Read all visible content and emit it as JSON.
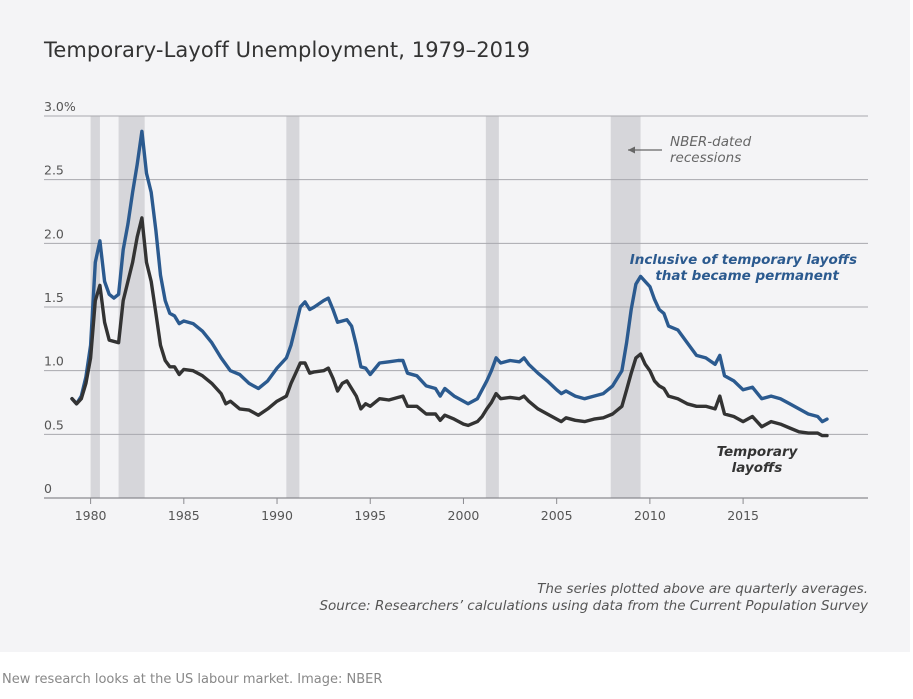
{
  "title": "Temporary-Layoff Unemployment, 1979–2019",
  "notes": [
    "The series plotted above are quarterly averages.",
    "Source: Researchers’ calculations using data from the Current Population Survey"
  ],
  "caption": "New research looks at the US labour market. Image: NBER",
  "chart_data": {
    "type": "line",
    "title": "Temporary-Layoff Unemployment, 1979–2019",
    "xlabel": "",
    "ylabel": "",
    "xlim": [
      1977.5,
      2021.7
    ],
    "ylim": [
      0,
      3.0
    ],
    "x_ticks": [
      1980,
      1985,
      1990,
      1995,
      2000,
      2005,
      2010,
      2015
    ],
    "x_tick_labels": [
      "1980",
      "1985",
      "1990",
      "1995",
      "2000",
      "2005",
      "2010",
      "2015"
    ],
    "y_ticks": [
      0,
      0.5,
      1.0,
      1.5,
      2.0,
      2.5,
      3.0
    ],
    "y_tick_labels": [
      "0",
      "0.5",
      "1.0",
      "1.5",
      "2.0",
      "2.5",
      "3.0%"
    ],
    "grid": true,
    "recessions": [
      {
        "start": 1980.0,
        "end": 1980.5
      },
      {
        "start": 1981.5,
        "end": 1982.9
      },
      {
        "start": 1990.5,
        "end": 1991.2
      },
      {
        "start": 2001.2,
        "end": 2001.9
      },
      {
        "start": 2007.9,
        "end": 2009.5
      }
    ],
    "recession_label": [
      "NBER-dated",
      "recessions"
    ],
    "series": [
      {
        "name": "Inclusive of temporary layoffs that became permanent",
        "label_lines": [
          "Inclusive of temporary layoffs",
          "that became permanent"
        ],
        "color": "#2b5a8f",
        "points": [
          [
            1979.0,
            0.78
          ],
          [
            1979.25,
            0.74
          ],
          [
            1979.5,
            0.8
          ],
          [
            1979.75,
            0.95
          ],
          [
            1980.0,
            1.2
          ],
          [
            1980.25,
            1.85
          ],
          [
            1980.5,
            2.02
          ],
          [
            1980.75,
            1.7
          ],
          [
            1981.0,
            1.6
          ],
          [
            1981.25,
            1.57
          ],
          [
            1981.5,
            1.6
          ],
          [
            1981.75,
            1.95
          ],
          [
            1982.0,
            2.15
          ],
          [
            1982.25,
            2.4
          ],
          [
            1982.5,
            2.62
          ],
          [
            1982.75,
            2.88
          ],
          [
            1983.0,
            2.55
          ],
          [
            1983.25,
            2.4
          ],
          [
            1983.5,
            2.1
          ],
          [
            1983.75,
            1.75
          ],
          [
            1984.0,
            1.55
          ],
          [
            1984.25,
            1.45
          ],
          [
            1984.5,
            1.43
          ],
          [
            1984.75,
            1.37
          ],
          [
            1985.0,
            1.39
          ],
          [
            1985.5,
            1.37
          ],
          [
            1986.0,
            1.31
          ],
          [
            1986.5,
            1.22
          ],
          [
            1987.0,
            1.1
          ],
          [
            1987.5,
            1.0
          ],
          [
            1988.0,
            0.97
          ],
          [
            1988.5,
            0.9
          ],
          [
            1989.0,
            0.86
          ],
          [
            1989.5,
            0.92
          ],
          [
            1990.0,
            1.02
          ],
          [
            1990.5,
            1.1
          ],
          [
            1990.75,
            1.2
          ],
          [
            1991.0,
            1.35
          ],
          [
            1991.25,
            1.5
          ],
          [
            1991.5,
            1.54
          ],
          [
            1991.75,
            1.48
          ],
          [
            1992.0,
            1.5
          ],
          [
            1992.5,
            1.55
          ],
          [
            1992.75,
            1.57
          ],
          [
            1993.0,
            1.48
          ],
          [
            1993.25,
            1.38
          ],
          [
            1993.75,
            1.4
          ],
          [
            1994.0,
            1.35
          ],
          [
            1994.25,
            1.2
          ],
          [
            1994.5,
            1.03
          ],
          [
            1994.75,
            1.02
          ],
          [
            1995.0,
            0.97
          ],
          [
            1995.5,
            1.06
          ],
          [
            1996.0,
            1.07
          ],
          [
            1996.5,
            1.08
          ],
          [
            1996.75,
            1.08
          ],
          [
            1997.0,
            0.98
          ],
          [
            1997.5,
            0.96
          ],
          [
            1998.0,
            0.88
          ],
          [
            1998.5,
            0.86
          ],
          [
            1998.75,
            0.8
          ],
          [
            1999.0,
            0.86
          ],
          [
            1999.5,
            0.8
          ],
          [
            2000.0,
            0.76
          ],
          [
            2000.25,
            0.74
          ],
          [
            2000.75,
            0.78
          ],
          [
            2001.0,
            0.85
          ],
          [
            2001.25,
            0.92
          ],
          [
            2001.5,
            1.0
          ],
          [
            2001.75,
            1.1
          ],
          [
            2002.0,
            1.06
          ],
          [
            2002.5,
            1.08
          ],
          [
            2003.0,
            1.07
          ],
          [
            2003.25,
            1.1
          ],
          [
            2003.5,
            1.05
          ],
          [
            2004.0,
            0.98
          ],
          [
            2004.5,
            0.92
          ],
          [
            2005.0,
            0.85
          ],
          [
            2005.25,
            0.82
          ],
          [
            2005.5,
            0.84
          ],
          [
            2006.0,
            0.8
          ],
          [
            2006.5,
            0.78
          ],
          [
            2007.0,
            0.8
          ],
          [
            2007.5,
            0.82
          ],
          [
            2008.0,
            0.88
          ],
          [
            2008.5,
            1.0
          ],
          [
            2008.75,
            1.22
          ],
          [
            2009.0,
            1.48
          ],
          [
            2009.25,
            1.68
          ],
          [
            2009.5,
            1.74
          ],
          [
            2009.75,
            1.7
          ],
          [
            2010.0,
            1.66
          ],
          [
            2010.25,
            1.56
          ],
          [
            2010.5,
            1.48
          ],
          [
            2010.75,
            1.45
          ],
          [
            2011.0,
            1.35
          ],
          [
            2011.5,
            1.32
          ],
          [
            2012.0,
            1.22
          ],
          [
            2012.5,
            1.12
          ],
          [
            2013.0,
            1.1
          ],
          [
            2013.5,
            1.05
          ],
          [
            2013.75,
            1.12
          ],
          [
            2014.0,
            0.96
          ],
          [
            2014.5,
            0.92
          ],
          [
            2015.0,
            0.85
          ],
          [
            2015.5,
            0.87
          ],
          [
            2016.0,
            0.78
          ],
          [
            2016.5,
            0.8
          ],
          [
            2017.0,
            0.78
          ],
          [
            2017.5,
            0.74
          ],
          [
            2018.0,
            0.7
          ],
          [
            2018.5,
            0.66
          ],
          [
            2019.0,
            0.64
          ],
          [
            2019.25,
            0.6
          ],
          [
            2019.5,
            0.62
          ]
        ]
      },
      {
        "name": "Temporary layoffs",
        "label_lines": [
          "Temporary",
          "layoffs"
        ],
        "color": "#333333",
        "points": [
          [
            1979.0,
            0.78
          ],
          [
            1979.25,
            0.74
          ],
          [
            1979.5,
            0.78
          ],
          [
            1979.75,
            0.9
          ],
          [
            1980.0,
            1.1
          ],
          [
            1980.25,
            1.55
          ],
          [
            1980.5,
            1.67
          ],
          [
            1980.75,
            1.38
          ],
          [
            1981.0,
            1.24
          ],
          [
            1981.5,
            1.22
          ],
          [
            1981.75,
            1.55
          ],
          [
            1982.0,
            1.7
          ],
          [
            1982.25,
            1.85
          ],
          [
            1982.5,
            2.05
          ],
          [
            1982.75,
            2.2
          ],
          [
            1983.0,
            1.85
          ],
          [
            1983.25,
            1.7
          ],
          [
            1983.5,
            1.45
          ],
          [
            1983.75,
            1.2
          ],
          [
            1984.0,
            1.08
          ],
          [
            1984.25,
            1.03
          ],
          [
            1984.5,
            1.03
          ],
          [
            1984.75,
            0.97
          ],
          [
            1985.0,
            1.01
          ],
          [
            1985.5,
            1.0
          ],
          [
            1986.0,
            0.96
          ],
          [
            1986.5,
            0.9
          ],
          [
            1987.0,
            0.82
          ],
          [
            1987.25,
            0.74
          ],
          [
            1987.5,
            0.76
          ],
          [
            1988.0,
            0.7
          ],
          [
            1988.5,
            0.69
          ],
          [
            1989.0,
            0.65
          ],
          [
            1989.5,
            0.7
          ],
          [
            1990.0,
            0.76
          ],
          [
            1990.5,
            0.8
          ],
          [
            1990.75,
            0.9
          ],
          [
            1991.0,
            0.98
          ],
          [
            1991.25,
            1.06
          ],
          [
            1991.5,
            1.06
          ],
          [
            1991.75,
            0.98
          ],
          [
            1992.0,
            0.99
          ],
          [
            1992.5,
            1.0
          ],
          [
            1992.75,
            1.02
          ],
          [
            1993.0,
            0.94
          ],
          [
            1993.25,
            0.84
          ],
          [
            1993.5,
            0.9
          ],
          [
            1993.75,
            0.92
          ],
          [
            1994.0,
            0.86
          ],
          [
            1994.25,
            0.8
          ],
          [
            1994.5,
            0.7
          ],
          [
            1994.75,
            0.74
          ],
          [
            1995.0,
            0.72
          ],
          [
            1995.5,
            0.78
          ],
          [
            1996.0,
            0.77
          ],
          [
            1996.5,
            0.79
          ],
          [
            1996.75,
            0.8
          ],
          [
            1997.0,
            0.72
          ],
          [
            1997.5,
            0.72
          ],
          [
            1998.0,
            0.66
          ],
          [
            1998.5,
            0.66
          ],
          [
            1998.75,
            0.61
          ],
          [
            1999.0,
            0.65
          ],
          [
            1999.5,
            0.62
          ],
          [
            2000.0,
            0.58
          ],
          [
            2000.25,
            0.57
          ],
          [
            2000.75,
            0.6
          ],
          [
            2001.0,
            0.64
          ],
          [
            2001.25,
            0.7
          ],
          [
            2001.5,
            0.75
          ],
          [
            2001.75,
            0.82
          ],
          [
            2002.0,
            0.78
          ],
          [
            2002.5,
            0.79
          ],
          [
            2003.0,
            0.78
          ],
          [
            2003.25,
            0.8
          ],
          [
            2003.5,
            0.76
          ],
          [
            2004.0,
            0.7
          ],
          [
            2004.5,
            0.66
          ],
          [
            2005.0,
            0.62
          ],
          [
            2005.25,
            0.6
          ],
          [
            2005.5,
            0.63
          ],
          [
            2006.0,
            0.61
          ],
          [
            2006.5,
            0.6
          ],
          [
            2007.0,
            0.62
          ],
          [
            2007.5,
            0.63
          ],
          [
            2008.0,
            0.66
          ],
          [
            2008.5,
            0.72
          ],
          [
            2008.75,
            0.85
          ],
          [
            2009.0,
            0.98
          ],
          [
            2009.25,
            1.1
          ],
          [
            2009.5,
            1.13
          ],
          [
            2009.75,
            1.05
          ],
          [
            2010.0,
            1.0
          ],
          [
            2010.25,
            0.92
          ],
          [
            2010.5,
            0.88
          ],
          [
            2010.75,
            0.86
          ],
          [
            2011.0,
            0.8
          ],
          [
            2011.5,
            0.78
          ],
          [
            2012.0,
            0.74
          ],
          [
            2012.5,
            0.72
          ],
          [
            2013.0,
            0.72
          ],
          [
            2013.5,
            0.7
          ],
          [
            2013.75,
            0.8
          ],
          [
            2014.0,
            0.66
          ],
          [
            2014.5,
            0.64
          ],
          [
            2015.0,
            0.6
          ],
          [
            2015.5,
            0.64
          ],
          [
            2016.0,
            0.56
          ],
          [
            2016.5,
            0.6
          ],
          [
            2017.0,
            0.58
          ],
          [
            2017.5,
            0.55
          ],
          [
            2018.0,
            0.52
          ],
          [
            2018.5,
            0.51
          ],
          [
            2019.0,
            0.51
          ],
          [
            2019.25,
            0.49
          ],
          [
            2019.5,
            0.49
          ]
        ]
      }
    ]
  }
}
